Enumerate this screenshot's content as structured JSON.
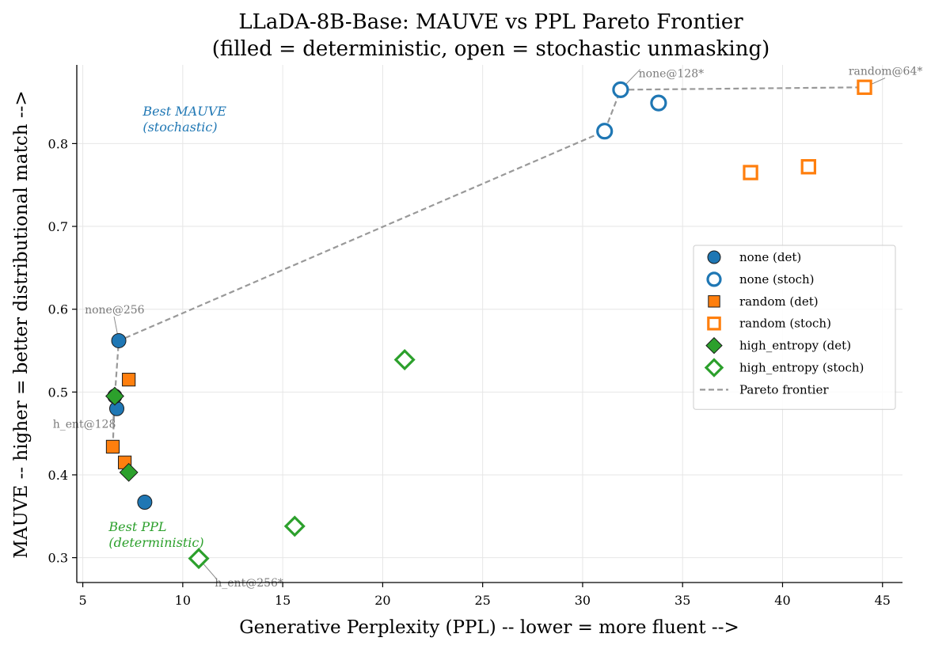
{
  "chart_data": {
    "type": "scatter",
    "title": "LLaDA-8B-Base: MAUVE vs PPL Pareto Frontier",
    "subtitle": "(filled = deterministic, open = stochastic unmasking)",
    "xlabel": "Generative Perplexity (PPL) -- lower = more fluent -->",
    "ylabel": "MAUVE -- higher = better distributional match -->",
    "xlim": [
      4.7,
      46.0
    ],
    "ylim": [
      0.27,
      0.895
    ],
    "xticks": [
      5,
      10,
      15,
      20,
      25,
      30,
      35,
      40,
      45
    ],
    "yticks": [
      0.3,
      0.4,
      0.5,
      0.6,
      0.7,
      0.8
    ],
    "grid": true,
    "legend_position": "center-right",
    "colors": {
      "none": "#1f77b4",
      "random": "#ff7f0e",
      "high_entropy": "#2ca02c",
      "frontier": "#999999"
    },
    "series": [
      {
        "name": "none (det)",
        "marker": "circle",
        "filled": true,
        "color": "#1f77b4",
        "points": [
          [
            6.8,
            0.562
          ],
          [
            6.7,
            0.48
          ],
          [
            6.6,
            0.495
          ],
          [
            8.1,
            0.367
          ]
        ]
      },
      {
        "name": "none (stoch)",
        "marker": "circle",
        "filled": false,
        "color": "#1f77b4",
        "points": [
          [
            31.9,
            0.865
          ],
          [
            33.8,
            0.849
          ],
          [
            31.1,
            0.815
          ]
        ]
      },
      {
        "name": "random (det)",
        "marker": "square",
        "filled": true,
        "color": "#ff7f0e",
        "points": [
          [
            7.3,
            0.515
          ],
          [
            6.5,
            0.434
          ],
          [
            7.1,
            0.415
          ]
        ]
      },
      {
        "name": "random (stoch)",
        "marker": "square",
        "filled": false,
        "color": "#ff7f0e",
        "points": [
          [
            44.1,
            0.868
          ],
          [
            41.3,
            0.772
          ],
          [
            38.4,
            0.765
          ]
        ]
      },
      {
        "name": "high_entropy (det)",
        "marker": "diamond",
        "filled": true,
        "color": "#2ca02c",
        "points": [
          [
            6.6,
            0.495
          ],
          [
            7.3,
            0.403
          ]
        ]
      },
      {
        "name": "high_entropy (stoch)",
        "marker": "diamond",
        "filled": false,
        "color": "#2ca02c",
        "points": [
          [
            21.1,
            0.539
          ],
          [
            15.6,
            0.338
          ],
          [
            10.8,
            0.299
          ]
        ]
      }
    ],
    "frontier": {
      "name": "Pareto frontier",
      "points": [
        [
          6.5,
          0.434
        ],
        [
          6.6,
          0.495
        ],
        [
          6.8,
          0.562
        ],
        [
          31.1,
          0.815
        ],
        [
          31.9,
          0.865
        ],
        [
          44.1,
          0.868
        ]
      ]
    },
    "annotations": [
      {
        "text": "none@256",
        "point": [
          6.8,
          0.562
        ],
        "label_at": [
          5.1,
          0.595
        ]
      },
      {
        "text": "h_ent@128",
        "point": [
          6.6,
          0.495
        ],
        "label_at": [
          3.5,
          0.457
        ]
      },
      {
        "text": "none@128*",
        "point": [
          31.9,
          0.865
        ],
        "label_at": [
          32.8,
          0.88
        ]
      },
      {
        "text": "random@64*",
        "point": [
          44.1,
          0.868
        ],
        "label_at": [
          43.3,
          0.883
        ]
      },
      {
        "text": "h_ent@256*",
        "point": [
          10.8,
          0.299
        ],
        "label_at": [
          11.6,
          0.265
        ]
      }
    ],
    "notes": [
      {
        "text_lines": [
          "Best MAUVE",
          "(stochastic)"
        ],
        "color": "#1f77b4",
        "at": [
          8.0,
          0.834
        ]
      },
      {
        "text_lines": [
          "Best PPL",
          "(deterministic)"
        ],
        "color": "#2ca02c",
        "at": [
          6.3,
          0.332
        ]
      }
    ]
  }
}
